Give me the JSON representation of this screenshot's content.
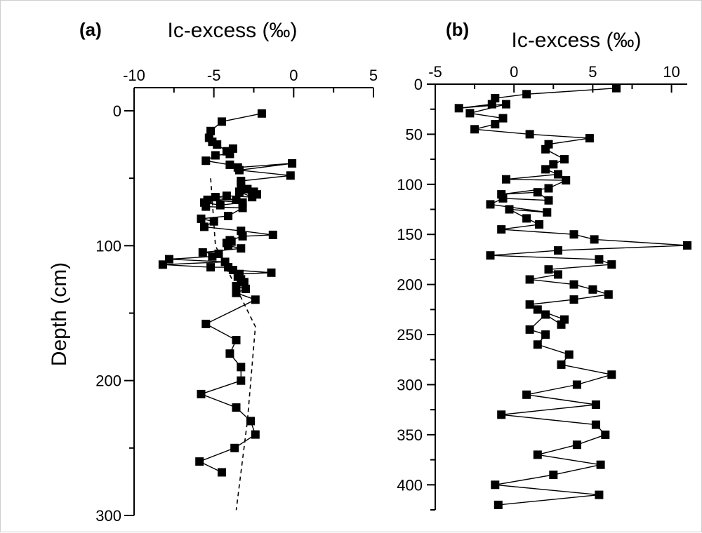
{
  "chart_data": [
    {
      "type": "scatter",
      "panel_label": "(a)",
      "xlabel": "Ic-excess (‰)",
      "ylabel": "Depth (cm)",
      "x_axis_position": "top",
      "y_inverted": true,
      "xlim": [
        -10,
        5
      ],
      "ylim": [
        0,
        300
      ],
      "x_ticks": [
        "-10",
        "-5",
        "0",
        "5"
      ],
      "y_ticks": [
        "0",
        "100",
        "200",
        "300"
      ],
      "grid": false,
      "series": [
        {
          "style": "line-squares",
          "points": [
            [
              -2.0,
              2
            ],
            [
              -4.5,
              8
            ],
            [
              -5.2,
              15
            ],
            [
              -5.3,
              20
            ],
            [
              -5.1,
              23
            ],
            [
              -4.8,
              25
            ],
            [
              -4.2,
              30
            ],
            [
              -3.8,
              28
            ],
            [
              -4.0,
              32
            ],
            [
              -4.9,
              33
            ],
            [
              -5.5,
              37
            ],
            [
              -4.0,
              40
            ],
            [
              -3.5,
              42
            ],
            [
              -0.1,
              39
            ],
            [
              -3.4,
              44
            ],
            [
              -0.2,
              48
            ],
            [
              -3.3,
              52
            ],
            [
              -3.3,
              54
            ],
            [
              -2.9,
              58
            ],
            [
              -2.5,
              60
            ],
            [
              -2.3,
              62
            ],
            [
              -3.4,
              60
            ],
            [
              -2.6,
              64
            ],
            [
              -4.2,
              63
            ],
            [
              -4.9,
              64
            ],
            [
              -3.6,
              66
            ],
            [
              -5.4,
              66
            ],
            [
              -3.2,
              68
            ],
            [
              -4.6,
              70
            ],
            [
              -5.6,
              68
            ],
            [
              -5.5,
              71
            ],
            [
              -3.2,
              72
            ],
            [
              -4.1,
              78
            ],
            [
              -5.8,
              80
            ],
            [
              -5.0,
              82
            ],
            [
              -5.6,
              86
            ],
            [
              -3.3,
              89
            ],
            [
              -1.3,
              92
            ],
            [
              -3.2,
              93
            ],
            [
              -4.0,
              96
            ],
            [
              -3.9,
              97
            ],
            [
              -4.2,
              98
            ],
            [
              -4.1,
              100
            ],
            [
              -3.3,
              102
            ],
            [
              -5.7,
              105
            ],
            [
              -4.7,
              106
            ],
            [
              -5.1,
              108
            ],
            [
              -7.8,
              110
            ],
            [
              -4.3,
              112
            ],
            [
              -8.2,
              114
            ],
            [
              -5.2,
              116
            ],
            [
              -4.1,
              116
            ],
            [
              -3.8,
              118
            ],
            [
              -1.4,
              120
            ],
            [
              -3.4,
              121
            ],
            [
              -3.5,
              123
            ],
            [
              -3.3,
              125
            ],
            [
              -3.1,
              127
            ],
            [
              -3.6,
              130
            ],
            [
              -3.0,
              132
            ],
            [
              -3.6,
              135
            ],
            [
              -2.4,
              140
            ],
            [
              -5.5,
              158
            ],
            [
              -3.6,
              170
            ],
            [
              -4.0,
              180
            ],
            [
              -3.3,
              190
            ],
            [
              -3.3,
              200
            ],
            [
              -5.8,
              210
            ],
            [
              -3.6,
              220
            ],
            [
              -2.7,
              230
            ],
            [
              -2.4,
              240
            ],
            [
              -3.7,
              250
            ],
            [
              -5.9,
              260
            ],
            [
              -4.5,
              268
            ]
          ]
        },
        {
          "style": "dashed-trend",
          "points": [
            [
              -5.2,
              50
            ],
            [
              -4.9,
              100
            ],
            [
              -2.4,
              160
            ],
            [
              -2.9,
              230
            ],
            [
              -3.6,
              296
            ]
          ]
        }
      ]
    },
    {
      "type": "scatter",
      "panel_label": "(b)",
      "xlabel": "Ic-excess (‰)",
      "ylabel": "",
      "x_axis_position": "top",
      "y_inverted": true,
      "xlim": [
        -5,
        11
      ],
      "ylim": [
        0,
        425
      ],
      "x_ticks": [
        "-5",
        "0",
        "5",
        "10"
      ],
      "y_ticks": [
        "0",
        "50",
        "100",
        "150",
        "200",
        "250",
        "300",
        "350",
        "400"
      ],
      "grid": false,
      "series": [
        {
          "style": "line-squares",
          "points": [
            [
              6.5,
              4
            ],
            [
              0.8,
              10
            ],
            [
              -1.2,
              14
            ],
            [
              -1.4,
              20
            ],
            [
              -3.5,
              24
            ],
            [
              -0.5,
              20
            ],
            [
              -2.8,
              29
            ],
            [
              -0.7,
              34
            ],
            [
              -1.2,
              40
            ],
            [
              -2.5,
              45
            ],
            [
              1.0,
              50
            ],
            [
              4.8,
              54
            ],
            [
              2.2,
              60
            ],
            [
              2.0,
              65
            ],
            [
              3.2,
              75
            ],
            [
              2.5,
              80
            ],
            [
              2.0,
              85
            ],
            [
              2.8,
              90
            ],
            [
              -0.5,
              95
            ],
            [
              3.3,
              96
            ],
            [
              2.2,
              104
            ],
            [
              -0.8,
              110
            ],
            [
              1.5,
              108
            ],
            [
              2.2,
              116
            ],
            [
              -0.7,
              114
            ],
            [
              -1.5,
              120
            ],
            [
              2.1,
              128
            ],
            [
              -0.3,
              125
            ],
            [
              0.8,
              134
            ],
            [
              1.6,
              140
            ],
            [
              -0.8,
              145
            ],
            [
              3.8,
              150
            ],
            [
              5.1,
              155
            ],
            [
              11.0,
              161
            ],
            [
              2.8,
              166
            ],
            [
              -1.5,
              171
            ],
            [
              5.4,
              175
            ],
            [
              6.2,
              180
            ],
            [
              2.2,
              185
            ],
            [
              2.8,
              190
            ],
            [
              1.0,
              195
            ],
            [
              3.8,
              200
            ],
            [
              5.0,
              205
            ],
            [
              6.0,
              210
            ],
            [
              3.8,
              215
            ],
            [
              1.0,
              220
            ],
            [
              1.5,
              225
            ],
            [
              3.2,
              235
            ],
            [
              3.0,
              240
            ],
            [
              2.0,
              230
            ],
            [
              1.0,
              245
            ],
            [
              2.0,
              250
            ],
            [
              1.5,
              260
            ],
            [
              3.5,
              270
            ],
            [
              3.0,
              280
            ],
            [
              6.2,
              290
            ],
            [
              4.0,
              300
            ],
            [
              0.8,
              310
            ],
            [
              5.2,
              320
            ],
            [
              -0.8,
              330
            ],
            [
              5.2,
              340
            ],
            [
              5.8,
              350
            ],
            [
              4.0,
              360
            ],
            [
              1.5,
              370
            ],
            [
              5.5,
              380
            ],
            [
              2.5,
              390
            ],
            [
              -1.2,
              400
            ],
            [
              5.4,
              410
            ],
            [
              -1.0,
              420
            ]
          ]
        }
      ]
    }
  ]
}
